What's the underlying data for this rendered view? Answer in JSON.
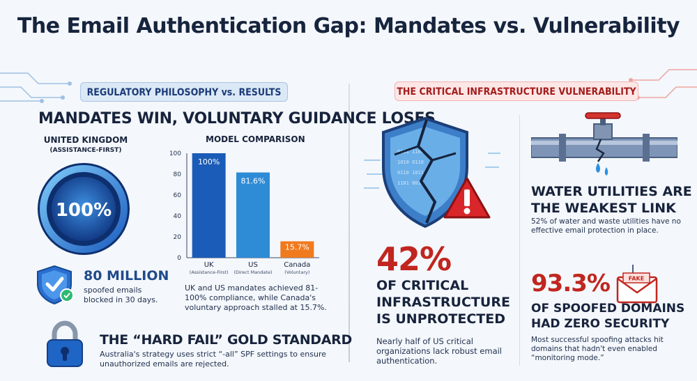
{
  "header": {
    "title": "The Email Authentication Gap: Mandates vs. Vulnerability"
  },
  "left": {
    "pill": "REGULATORY PHILOSOPHY vs. RESULTS",
    "heading": "MANDATES WIN, VOLUNTARY GUIDANCE LOSES",
    "uk_label": "UNITED KINGDOM",
    "uk_sublabel": "(ASSISTANCE-FIRST)",
    "gauge_value": "100%",
    "gauge_fraction": 1.0,
    "million": {
      "value": "80 MILLION",
      "text_line1": "spoofed emails",
      "text_line2": "blocked in 30 days."
    },
    "chart_caption": "UK and US mandates achieved 81-100% compliance, while Canada's voluntary approach stalled at 15.7%.",
    "hardfail": {
      "heading": "THE “HARD FAIL” GOLD STANDARD",
      "text": "Australia's strategy uses strict “-all” SPF settings to ensure unauthorized emails are rejected."
    }
  },
  "chart_data": {
    "type": "bar",
    "title": "MODEL COMPARISON",
    "categories": [
      "UK",
      "US",
      "Canada"
    ],
    "category_sublabels": [
      "(Assistance-First)",
      "(Direct Mandate)",
      "(Voluntary)"
    ],
    "values": [
      100,
      81.6,
      15.7
    ],
    "value_labels": [
      "100%",
      "81.6%",
      "15.7%"
    ],
    "colors": [
      "#1b5cb8",
      "#2e8bd6",
      "#f07a1e"
    ],
    "yticks": [
      "0",
      "20",
      "40",
      "60",
      "80",
      "100"
    ],
    "ylim": [
      0,
      100
    ],
    "grid": false
  },
  "right": {
    "pill": "THE CRITICAL INFRASTRUCTURE VULNERABILITY",
    "critical": {
      "value": "42%",
      "heading_lines": [
        "OF CRITICAL",
        "INFRASTRUCTURE",
        "IS UNPROTECTED"
      ],
      "text": "Nearly half of US critical organizations lack robust email authentication."
    },
    "water": {
      "heading_lines": [
        "WATER UTILITIES ARE",
        "THE WEAKEST LINK"
      ],
      "text": "52% of water and waste utilities have no effective email protection in place."
    },
    "spoofed": {
      "value": "93.3%",
      "envelope_label": "FAKE",
      "heading_lines": [
        "OF SPOOFED DOMAINS",
        "HAD ZERO SECURITY"
      ],
      "text": "Most successful spoofing attacks hit domains that hadn't even enabled “monitoring mode.”"
    }
  },
  "colors": {
    "navy": "#17233c",
    "accent_blue": "#1f4a8c",
    "accent_red": "#c0261f"
  }
}
